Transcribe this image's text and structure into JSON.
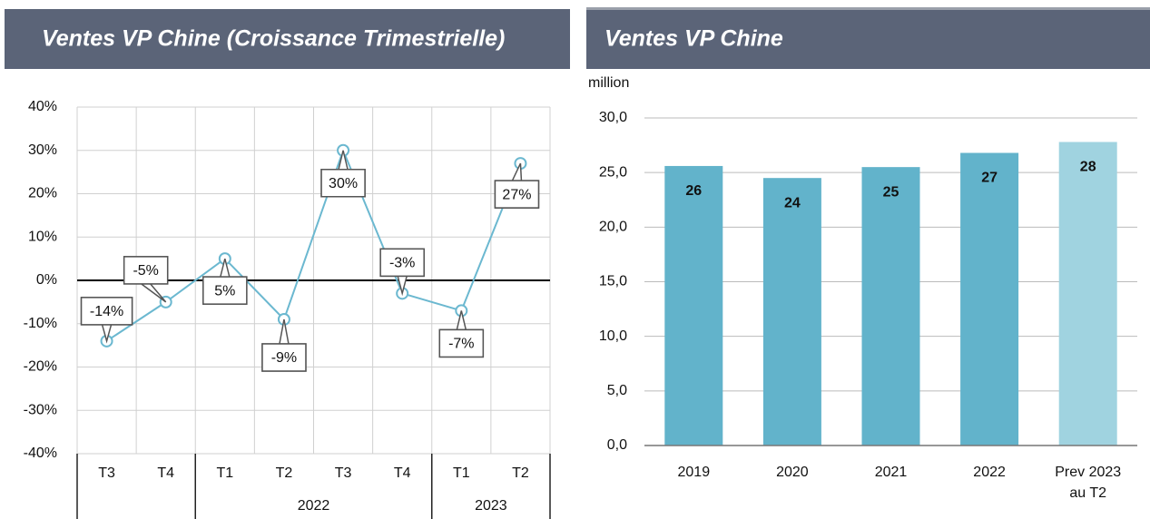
{
  "chart_data": [
    {
      "type": "line",
      "title": "Ventes VP Chine (Croissance Trimestrielle)",
      "groups": [
        {
          "label": null,
          "categories": [
            "T3",
            "T4"
          ]
        },
        {
          "label": "2022",
          "categories": [
            "T1",
            "T2",
            "T3",
            "T4"
          ]
        },
        {
          "label": "2023",
          "categories": [
            "T1",
            "T2"
          ]
        }
      ],
      "values": [
        -14,
        -5,
        5,
        -9,
        30,
        -3,
        -7,
        27
      ],
      "value_labels": [
        "-14%",
        "-5%",
        "5%",
        "-9%",
        "30%",
        "-3%",
        "-7%",
        "27%"
      ],
      "color": "#6bb8d0",
      "ylim": [
        -40,
        40
      ],
      "yticks": [
        {
          "value": -40,
          "label": "-40%"
        },
        {
          "value": -30,
          "label": "-30%"
        },
        {
          "value": -20,
          "label": "-20%"
        },
        {
          "value": -10,
          "label": "-10%"
        },
        {
          "value": 0,
          "label": "0%"
        },
        {
          "value": 10,
          "label": "10%"
        },
        {
          "value": 20,
          "label": "20%"
        },
        {
          "value": 30,
          "label": "30%"
        },
        {
          "value": 40,
          "label": "40%"
        }
      ],
      "grid": true
    },
    {
      "type": "bar",
      "title": "Ventes VP Chine",
      "y_label": "million",
      "categories": [
        "2019",
        "2020",
        "2021",
        "2022",
        "Prev 2023 au T2"
      ],
      "values": [
        25.6,
        24.5,
        25.5,
        26.8,
        27.8
      ],
      "value_labels": [
        "26",
        "24",
        "25",
        "27",
        "28"
      ],
      "colors": [
        "#62b3cb",
        "#62b3cb",
        "#62b3cb",
        "#62b3cb",
        "#a0d3e0"
      ],
      "ylim": [
        0,
        30
      ],
      "yticks": [
        {
          "value": 0,
          "label": "0,0"
        },
        {
          "value": 5,
          "label": "5,0"
        },
        {
          "value": 10,
          "label": "10,0"
        },
        {
          "value": 15,
          "label": "15,0"
        },
        {
          "value": 20,
          "label": "20,0"
        },
        {
          "value": 25,
          "label": "25,0"
        },
        {
          "value": 30,
          "label": "30,0"
        }
      ],
      "grid": true
    }
  ]
}
